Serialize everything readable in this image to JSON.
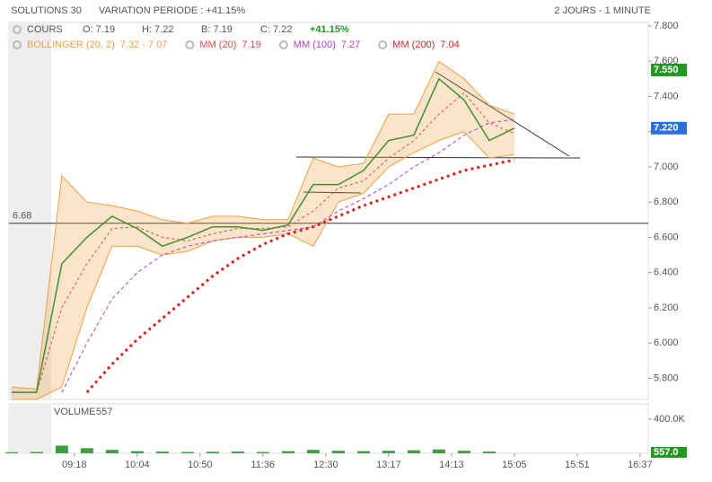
{
  "header": {
    "title": "SOLUTIONS 30",
    "variation": "VARIATION PERIODE : +41.15%",
    "period": "2 JOURS - 1 MINUTE"
  },
  "chart_data": {
    "type": "line",
    "ohlc": {
      "name": "COURS",
      "open": "O: 7.19",
      "high": "H: 7.22",
      "low": "B: 7.19",
      "close": "C: 7.22",
      "change": "+41.15%"
    },
    "x": [
      0,
      4,
      8,
      12,
      16,
      20,
      24,
      28,
      32,
      36,
      40,
      44,
      48,
      52,
      56,
      60,
      64,
      68,
      72,
      76,
      80
    ],
    "xlim": [
      -0.4,
      101.3
    ],
    "xticks": [
      {
        "value": 10,
        "label": "09:18"
      },
      {
        "value": 20,
        "label": "10:04"
      },
      {
        "value": 30,
        "label": "10:50"
      },
      {
        "value": 40,
        "label": "11:36"
      },
      {
        "value": 50,
        "label": "12:30"
      },
      {
        "value": 60,
        "label": "13:17"
      },
      {
        "value": 70,
        "label": "14:13"
      },
      {
        "value": 80,
        "label": "15:05"
      },
      {
        "value": 90,
        "label": "15:51"
      },
      {
        "value": 100,
        "label": "16:37"
      }
    ],
    "ylim": [
      5.68,
      7.82
    ],
    "yticks": [
      {
        "value": 5.8,
        "label": "5.800"
      },
      {
        "value": 6.0,
        "label": "6.000"
      },
      {
        "value": 6.2,
        "label": "6.200"
      },
      {
        "value": 6.4,
        "label": "6.400"
      },
      {
        "value": 6.6,
        "label": "6.600"
      },
      {
        "value": 6.8,
        "label": "6.800"
      },
      {
        "value": 7.0,
        "label": "7.000"
      },
      {
        "value": 7.2,
        "label": "7.200"
      },
      {
        "value": 7.4,
        "label": "7.400"
      },
      {
        "value": 7.6,
        "label": "7.600"
      },
      {
        "value": 7.8,
        "label": "7.800"
      }
    ],
    "price": {
      "color": "#3f8f2f",
      "values": [
        5.72,
        5.72,
        6.45,
        6.6,
        6.72,
        6.65,
        6.55,
        6.6,
        6.66,
        6.66,
        6.64,
        6.67,
        6.9,
        6.9,
        6.98,
        7.15,
        7.18,
        7.5,
        7.38,
        7.15,
        7.22
      ]
    },
    "bollinger": {
      "name": "BOLLINGER (20, 2)",
      "legend_value": "7.32 - 7.07",
      "color": "#f0a040",
      "upper": [
        5.75,
        5.74,
        6.95,
        6.8,
        6.78,
        6.75,
        6.7,
        6.68,
        6.72,
        6.72,
        6.7,
        6.7,
        7.05,
        7.0,
        7.02,
        7.3,
        7.3,
        7.6,
        7.5,
        7.35,
        7.3
      ],
      "lower": [
        5.68,
        5.68,
        5.75,
        6.2,
        6.55,
        6.55,
        6.5,
        6.52,
        6.58,
        6.6,
        6.6,
        6.62,
        6.55,
        6.8,
        6.85,
        7.0,
        7.08,
        7.15,
        7.2,
        7.05,
        7.07
      ]
    },
    "series": [
      {
        "name": "MM (20)",
        "legend_value": "7.19",
        "color": "#e04848",
        "dash": "3,3",
        "width": 1,
        "values": [
          5.72,
          5.72,
          6.2,
          6.45,
          6.65,
          6.66,
          6.6,
          6.58,
          6.62,
          6.65,
          6.65,
          6.66,
          6.75,
          6.88,
          6.92,
          7.05,
          7.15,
          7.3,
          7.42,
          7.25,
          7.19
        ]
      },
      {
        "name": "MM (100)",
        "legend_value": "7.27",
        "color": "#b040c8",
        "dash": "4,3",
        "width": 1,
        "values": [
          null,
          null,
          5.72,
          6.0,
          6.25,
          6.4,
          6.5,
          6.55,
          6.58,
          6.6,
          6.62,
          6.64,
          6.66,
          6.75,
          6.82,
          6.9,
          7.0,
          7.08,
          7.18,
          7.25,
          7.27
        ]
      },
      {
        "name": "MM (200)",
        "legend_value": "7.04",
        "color": "#e02020",
        "dash": "3,4",
        "width": 3,
        "values": [
          null,
          null,
          null,
          5.72,
          5.88,
          6.02,
          6.14,
          6.26,
          6.38,
          6.48,
          6.56,
          6.62,
          6.66,
          6.72,
          6.78,
          6.83,
          6.88,
          6.93,
          6.98,
          7.01,
          7.04
        ]
      }
    ],
    "level": {
      "value": 6.68,
      "label": "6.68"
    },
    "badges": [
      {
        "value": 7.55,
        "label": "7.550",
        "color": "#1f9a1f"
      },
      {
        "value": 7.22,
        "label": "7.220",
        "color": "#2a6fdb"
      }
    ],
    "volume": {
      "name": "VOLUME",
      "last": 557,
      "badge": "557.0",
      "color": "#3f9f3f",
      "values": [
        12000,
        15000,
        90000,
        60000,
        40000,
        25000,
        20000,
        15000,
        18000,
        20000,
        15000,
        25000,
        40000,
        30000,
        25000,
        30000,
        35000,
        45000,
        30000,
        20000,
        557
      ],
      "ylim": [
        0,
        579000
      ],
      "yticks": [
        {
          "value": 400000,
          "label": "400.0K"
        }
      ]
    }
  }
}
